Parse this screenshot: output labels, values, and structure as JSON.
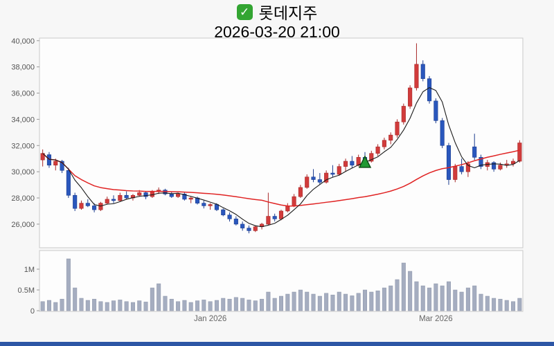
{
  "header": {
    "checkbox_glyph": "✓",
    "title": "롯데지주",
    "subtitle": "2026-03-20 21:00"
  },
  "colors": {
    "checkbox_green": "#33a532",
    "accent_bar": "#2d56a5",
    "panel_bg": "#fdfdfd",
    "panel_border": "#c9c9c9",
    "axis_text": "#555555"
  },
  "chart_data": {
    "type": "candlestick",
    "title": "롯데지주",
    "timestamp": "2026-03-20 21:00",
    "price_axis": {
      "min": 24200,
      "max": 40200,
      "ticks": [
        {
          "label": "40,000",
          "value": 40000
        },
        {
          "label": "38,000",
          "value": 38000
        },
        {
          "label": "36,000",
          "value": 36000
        },
        {
          "label": "34,000",
          "value": 34000
        },
        {
          "label": "32,000",
          "value": 32000
        },
        {
          "label": "30,000",
          "value": 30000
        },
        {
          "label": "28,000",
          "value": 28000
        },
        {
          "label": "26,000",
          "value": 26000
        }
      ]
    },
    "time_axis": {
      "ticks": [
        {
          "label": "Jan 2026",
          "index": 26
        },
        {
          "label": "Mar 2026",
          "index": 61
        }
      ]
    },
    "volume_axis": {
      "ticks": [
        {
          "label": "0",
          "value": 0
        },
        {
          "label": "0.5M",
          "value": 0.5
        },
        {
          "label": "1M",
          "value": 1
        }
      ]
    },
    "series": {
      "candles_ohlc": [
        [
          30900,
          31700,
          30400,
          31400
        ],
        [
          31300,
          31500,
          30300,
          30500
        ],
        [
          30500,
          31000,
          30100,
          30800
        ],
        [
          30800,
          30900,
          29900,
          30100
        ],
        [
          30100,
          30300,
          28000,
          28200
        ],
        [
          28200,
          28400,
          27000,
          27200
        ],
        [
          27200,
          27800,
          27100,
          27600
        ],
        [
          27600,
          27900,
          27300,
          27400
        ],
        [
          27400,
          27600,
          26900,
          27100
        ],
        [
          27100,
          27700,
          27000,
          27600
        ],
        [
          27600,
          28100,
          27500,
          27900
        ],
        [
          27900,
          28200,
          27600,
          27800
        ],
        [
          27800,
          28400,
          27700,
          28200
        ],
        [
          28200,
          28500,
          27900,
          28000
        ],
        [
          28000,
          28300,
          27800,
          28200
        ],
        [
          28200,
          28600,
          28100,
          28400
        ],
        [
          28400,
          28500,
          27900,
          28100
        ],
        [
          28100,
          28600,
          28000,
          28500
        ],
        [
          28500,
          28800,
          28300,
          28600
        ],
        [
          28600,
          28700,
          28200,
          28300
        ],
        [
          28300,
          28500,
          28000,
          28100
        ],
        [
          28100,
          28400,
          28000,
          28300
        ],
        [
          28300,
          28400,
          27800,
          27900
        ],
        [
          27900,
          28100,
          27600,
          28000
        ],
        [
          28000,
          28100,
          27500,
          27600
        ],
        [
          27600,
          27800,
          27200,
          27400
        ],
        [
          27400,
          27600,
          27100,
          27500
        ],
        [
          27500,
          27600,
          27000,
          27100
        ],
        [
          27100,
          27200,
          26600,
          26700
        ],
        [
          26700,
          26900,
          26200,
          26400
        ],
        [
          26400,
          26600,
          25900,
          26000
        ],
        [
          26000,
          26200,
          25500,
          25700
        ],
        [
          25700,
          25900,
          25300,
          25500
        ],
        [
          25500,
          25900,
          25400,
          25800
        ],
        [
          25800,
          26100,
          25600,
          26000
        ],
        [
          26000,
          28400,
          25900,
          26600
        ],
        [
          26600,
          26800,
          26200,
          26400
        ],
        [
          26400,
          27100,
          26300,
          27000
        ],
        [
          27000,
          27600,
          26900,
          27400
        ],
        [
          27400,
          28300,
          27300,
          28100
        ],
        [
          28100,
          29000,
          28000,
          28800
        ],
        [
          28800,
          29800,
          28700,
          29600
        ],
        [
          29600,
          30200,
          29200,
          29400
        ],
        [
          29400,
          29900,
          29000,
          29200
        ],
        [
          29200,
          30100,
          29100,
          29900
        ],
        [
          29900,
          30500,
          29600,
          29800
        ],
        [
          29800,
          30600,
          29700,
          30400
        ],
        [
          30400,
          31000,
          30000,
          30800
        ],
        [
          30800,
          31200,
          30300,
          30500
        ],
        [
          30500,
          31300,
          30400,
          31100
        ],
        [
          31100,
          31500,
          30600,
          30800
        ],
        [
          30800,
          31600,
          30700,
          31400
        ],
        [
          31400,
          32100,
          31200,
          31900
        ],
        [
          31900,
          32600,
          31700,
          32400
        ],
        [
          32400,
          33000,
          32100,
          32800
        ],
        [
          32800,
          34000,
          32600,
          33800
        ],
        [
          33800,
          35200,
          33600,
          35000
        ],
        [
          35000,
          36600,
          34800,
          36400
        ],
        [
          36400,
          39800,
          36200,
          38200
        ],
        [
          38200,
          38500,
          36900,
          37100
        ],
        [
          37100,
          37300,
          35200,
          35400
        ],
        [
          35400,
          35600,
          33700,
          33900
        ],
        [
          33900,
          34100,
          31800,
          32000
        ],
        [
          32000,
          32200,
          29000,
          29400
        ],
        [
          29400,
          30600,
          29200,
          30400
        ],
        [
          30400,
          31000,
          29800,
          30000
        ],
        [
          30000,
          30800,
          29600,
          30600
        ],
        [
          31900,
          32900,
          30900,
          31100
        ],
        [
          31100,
          31300,
          30200,
          30400
        ],
        [
          30400,
          30900,
          30100,
          30700
        ],
        [
          30700,
          30800,
          30000,
          30200
        ],
        [
          30200,
          30700,
          30100,
          30500
        ],
        [
          30500,
          30900,
          30300,
          30600
        ],
        [
          30600,
          31000,
          30400,
          30800
        ],
        [
          30800,
          32400,
          30700,
          32200
        ]
      ],
      "volumes_millions": [
        0.22,
        0.25,
        0.2,
        0.28,
        1.25,
        0.55,
        0.3,
        0.25,
        0.28,
        0.22,
        0.2,
        0.24,
        0.26,
        0.22,
        0.2,
        0.24,
        0.21,
        0.55,
        0.65,
        0.35,
        0.28,
        0.22,
        0.25,
        0.2,
        0.24,
        0.26,
        0.22,
        0.25,
        0.3,
        0.28,
        0.32,
        0.3,
        0.26,
        0.24,
        0.28,
        0.45,
        0.3,
        0.35,
        0.4,
        0.45,
        0.5,
        0.45,
        0.4,
        0.35,
        0.42,
        0.38,
        0.45,
        0.4,
        0.36,
        0.42,
        0.5,
        0.45,
        0.48,
        0.55,
        0.6,
        0.75,
        1.15,
        0.95,
        0.7,
        0.6,
        0.55,
        0.65,
        0.6,
        0.7,
        0.5,
        0.45,
        0.55,
        0.6,
        0.4,
        0.35,
        0.3,
        0.28,
        0.25,
        0.22,
        0.3
      ]
    },
    "overlays": {
      "ma_short": {
        "window": 5,
        "color": "#1a1a1a"
      },
      "ma_long": {
        "window": 35,
        "color": "#e02222"
      }
    },
    "marker": {
      "shape": "triangle-up",
      "index": 50,
      "price": 30700,
      "fill": "#1f9932",
      "stroke": "#0d4f16"
    },
    "colors": {
      "up": "#d13b3b",
      "up_stroke": "#a82828",
      "down": "#2a57bd",
      "down_stroke": "#1c3d8f",
      "volume_bar": "#a5adc0",
      "volume_bar_stroke": "#8d95aa"
    }
  }
}
